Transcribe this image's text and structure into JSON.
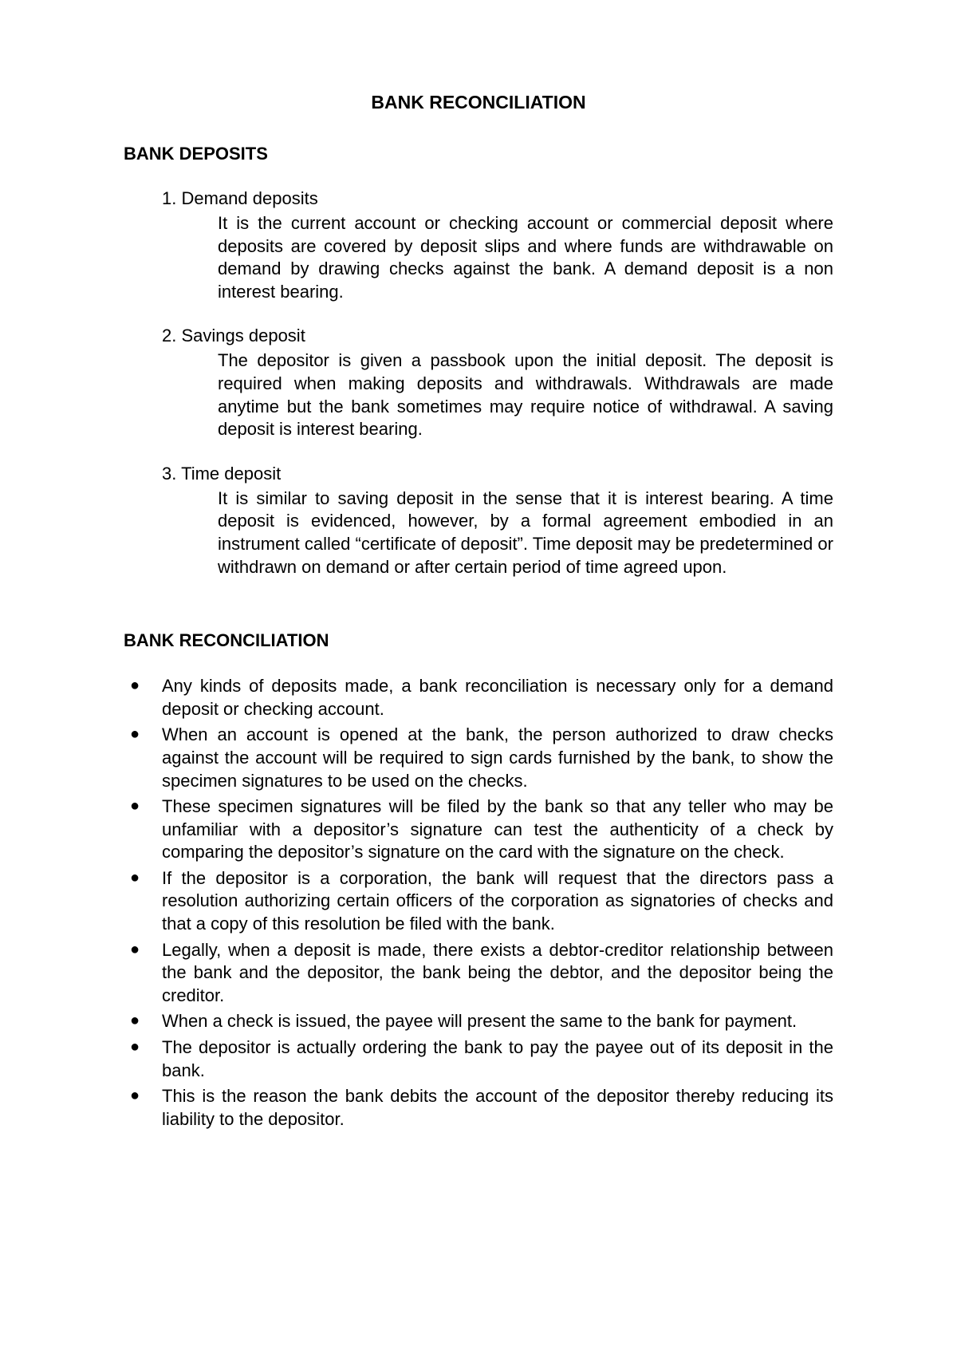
{
  "colors": {
    "text": "#000000",
    "background": "#ffffff"
  },
  "typography": {
    "font_family": "Arial",
    "title_fontsize": 23,
    "heading_fontsize": 22,
    "body_fontsize": 22
  },
  "main_title": "BANK RECONCILIATION",
  "section1": {
    "heading": "BANK DEPOSITS",
    "items": [
      {
        "number": "1.",
        "title": "Demand deposits",
        "body": "It is the current account or checking account or commercial deposit where deposits are covered by deposit slips and where funds are withdrawable on demand by drawing checks against the bank. A demand deposit is a non interest bearing."
      },
      {
        "number": "2.",
        "title": "Savings deposit",
        "body": "The depositor is given a passbook upon the initial deposit. The deposit is required when making deposits and withdrawals. Withdrawals are made anytime but the bank sometimes may require notice of withdrawal. A saving deposit is interest bearing."
      },
      {
        "number": "3.",
        "title": "Time deposit",
        "body": "It is similar to saving deposit in the sense that it is interest bearing. A time deposit is evidenced, however, by a formal agreement embodied in an instrument called “certificate of deposit”. Time deposit may be predetermined or withdrawn on demand or after certain period of time agreed upon."
      }
    ]
  },
  "section2": {
    "heading": "BANK RECONCILIATION",
    "bullets": [
      "Any kinds of deposits made, a bank reconciliation is necessary only for a demand deposit or checking account.",
      "When an account is opened at the bank, the person authorized to draw checks against the account will be required to sign cards furnished by the bank, to show the specimen signatures to be used on the checks.",
      "These specimen signatures will be filed by the bank so that any teller who may be unfamiliar with a depositor’s signature can test the authenticity of a check by comparing the depositor’s signature on the card with the signature on the check.",
      "If the depositor is a corporation, the bank will request that the directors pass a resolution authorizing certain officers of the corporation as signatories of checks and that a copy of this resolution be filed with the bank.",
      "Legally, when a deposit is made, there exists a debtor-creditor relationship between the bank and the depositor, the bank being the debtor, and the depositor being the creditor.",
      "When a check is issued, the payee will present the same to the bank for payment.",
      "The depositor is actually ordering the bank to pay the payee out of its deposit in the bank.",
      "This is the reason the bank debits the account of the depositor thereby reducing its liability  to the depositor."
    ]
  }
}
